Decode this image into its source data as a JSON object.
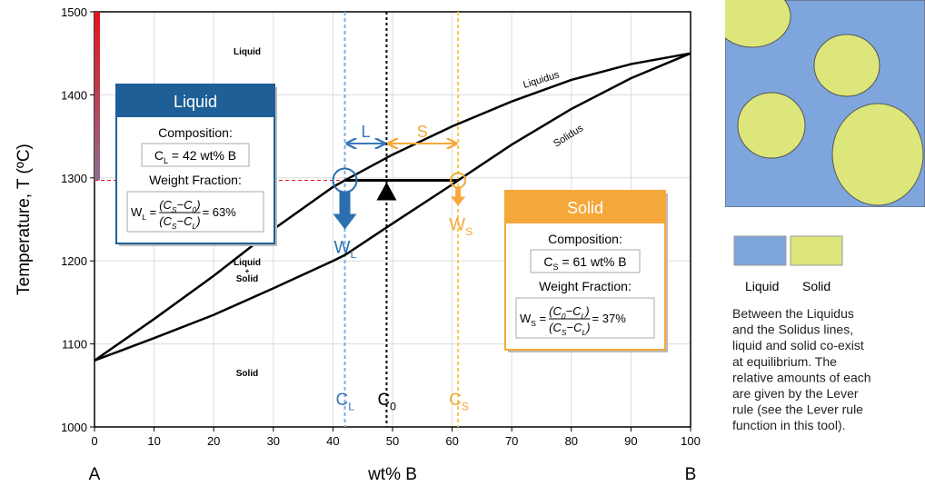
{
  "chart_data": {
    "type": "line",
    "x": [
      0,
      10,
      20,
      30,
      40,
      42,
      50,
      60,
      61,
      70,
      80,
      90,
      100
    ],
    "series": [
      {
        "name": "Liquidus",
        "color": "#000000",
        "values": [
          1080,
          1130,
          1182,
          1238,
          1289,
          1297,
          1328,
          1362,
          1365,
          1392,
          1418,
          1437,
          1450
        ]
      },
      {
        "name": "Solidus",
        "color": "#000000",
        "values": [
          1080,
          1107,
          1135,
          1167,
          1200,
          1207,
          1245,
          1292,
          1297,
          1340,
          1383,
          1420,
          1450
        ]
      }
    ],
    "xlim": [
      0,
      100
    ],
    "ylim": [
      1000,
      1500
    ],
    "xticks": [
      0,
      10,
      20,
      30,
      40,
      50,
      60,
      70,
      80,
      90,
      100
    ],
    "yticks": [
      1000,
      1100,
      1200,
      1300,
      1400,
      1500
    ],
    "grid": true,
    "xlabel": "wt% B",
    "ylabel": "Temperature, T  (ºC)",
    "x_end_labels": [
      "A",
      "B"
    ],
    "regions": {
      "liquid": "Liquid",
      "two_phase": [
        "Liquid",
        "+",
        "Solid"
      ],
      "solid": "Solid"
    },
    "tie_line": {
      "temperature": 1297,
      "c_l": 42,
      "c_0": 49,
      "c_s": 61
    },
    "markers": {
      "c_l": [
        "C",
        "L"
      ],
      "c_0": [
        "C",
        "0"
      ],
      "c_s": [
        "C",
        "S"
      ],
      "w_l": [
        "W",
        "L"
      ],
      "w_s": [
        "W",
        "S"
      ],
      "l": "L",
      "s": "S"
    },
    "liquid_box": {
      "title": "Liquid",
      "composition_label": "Composition:",
      "composition": [
        "C",
        "L",
        " = 42 wt% B"
      ],
      "fraction_label": "Weight Fraction:",
      "fraction": {
        "lhs": [
          "W",
          "L",
          " ="
        ],
        "numerator": [
          "(C",
          "S",
          "−C",
          "0",
          ")"
        ],
        "denominator": [
          "(C",
          "S",
          "−C",
          "L",
          ")"
        ],
        "result": "= 63%"
      }
    },
    "solid_box": {
      "title": "Solid",
      "composition_label": "Composition:",
      "composition": [
        "C",
        "S",
        " = 61 wt% B"
      ],
      "fraction_label": "Weight Fraction:",
      "fraction": {
        "lhs": [
          "W",
          "S",
          " ="
        ],
        "numerator": [
          "(C",
          "0",
          "−C",
          "L",
          ")"
        ],
        "denominator": [
          "(C",
          "S",
          "−C",
          "L",
          ")"
        ],
        "result": "= 37%"
      }
    }
  },
  "side_panel": {
    "legend": [
      {
        "name": "Liquid",
        "color": "#7fa6dc"
      },
      {
        "name": "Solid",
        "color": "#dde67a"
      }
    ],
    "text": [
      "Between the Liquidus",
      "and the Solidus lines,",
      "liquid and solid co-exist",
      "at equilibrium. The",
      "relative amounts of each",
      "are given by the Lever",
      "rule (see the Lever rule",
      "function in this tool)."
    ]
  }
}
